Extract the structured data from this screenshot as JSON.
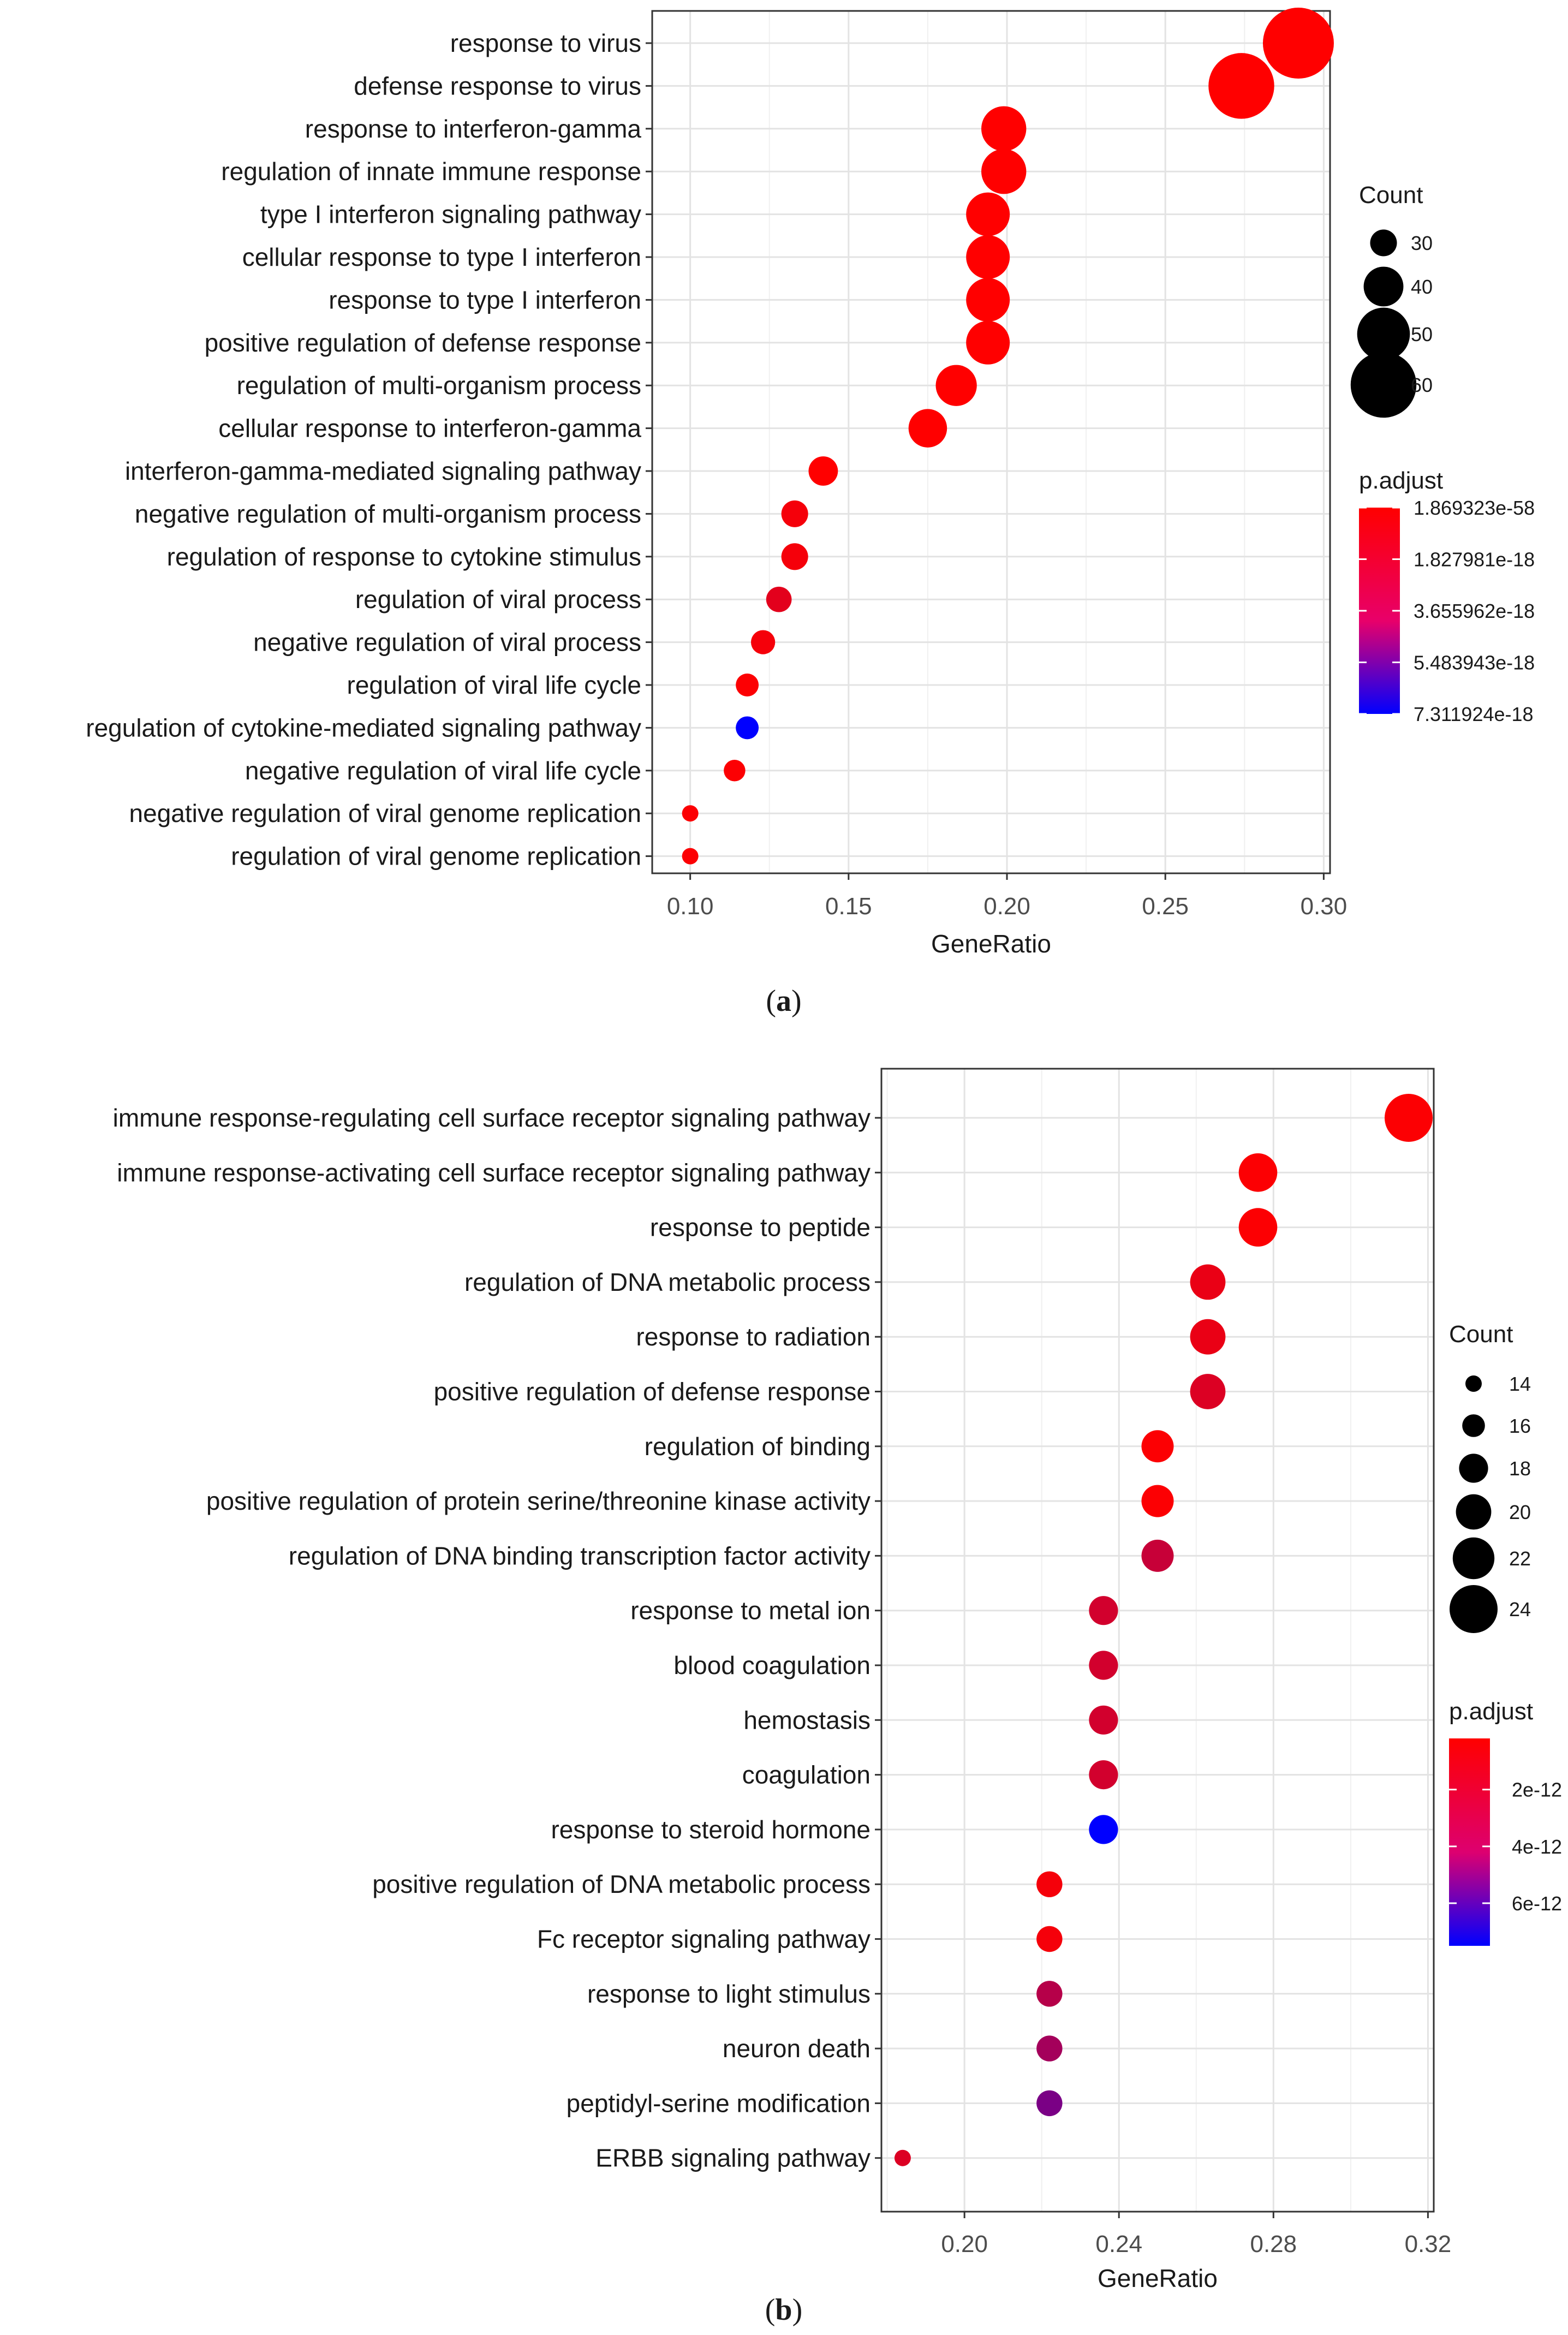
{
  "chart_data": [
    {
      "type": "scatter",
      "panel_label": "a",
      "xlabel": "GeneRatio",
      "xlim": [
        0.088,
        0.302
      ],
      "xticks": [
        "0.10",
        "0.15",
        "0.20",
        "0.25",
        "0.30"
      ],
      "xtick_values": [
        0.1,
        0.15,
        0.2,
        0.25,
        0.3
      ],
      "grid": true,
      "legend_placement": "right",
      "size_legend": {
        "title": "Count",
        "labels": [
          "30",
          "40",
          "50",
          "60"
        ],
        "values": [
          30,
          40,
          50,
          60
        ]
      },
      "color_legend": {
        "title": "p.adjust",
        "labels": [
          "1.869323e-58",
          "1.827981e-18",
          "3.655962e-18",
          "5.483943e-18",
          "7.311924e-18"
        ],
        "min": 0,
        "max": 7.311924e-18,
        "low_color": "#ff0000",
        "high_color": "#0000ff"
      },
      "size_range": [
        15,
        65
      ],
      "categories": [
        "response to virus",
        "defense response to virus",
        "response to interferon-gamma",
        "regulation of innate immune response",
        "type I interferon signaling pathway",
        "cellular response to type I interferon",
        "response to type I interferon",
        "positive regulation of defense response",
        "regulation of multi-organism process",
        "cellular response to interferon-gamma",
        "interferon-gamma-mediated signaling pathway",
        "negative regulation of multi-organism process",
        "regulation of response to cytokine stimulus",
        "regulation of viral process",
        "negative regulation of viral process",
        "regulation of viral life cycle",
        "regulation of cytokine-mediated signaling pathway",
        "negative regulation of viral life cycle",
        "negative regulation of viral genome replication",
        "regulation of viral genome replication"
      ],
      "points": [
        {
          "x": 0.292,
          "count": 64,
          "p_adjust": 2e-58
        },
        {
          "x": 0.274,
          "count": 60,
          "p_adjust": 2e-50
        },
        {
          "x": 0.199,
          "count": 44,
          "p_adjust": 1e-28
        },
        {
          "x": 0.199,
          "count": 44,
          "p_adjust": 1e-28
        },
        {
          "x": 0.194,
          "count": 43,
          "p_adjust": 1e-30
        },
        {
          "x": 0.194,
          "count": 43,
          "p_adjust": 1e-30
        },
        {
          "x": 0.194,
          "count": 43,
          "p_adjust": 1e-30
        },
        {
          "x": 0.194,
          "count": 43,
          "p_adjust": 1e-22
        },
        {
          "x": 0.184,
          "count": 41,
          "p_adjust": 1e-25
        },
        {
          "x": 0.175,
          "count": 39,
          "p_adjust": 1e-25
        },
        {
          "x": 0.142,
          "count": 32,
          "p_adjust": 1e-22
        },
        {
          "x": 0.133,
          "count": 30,
          "p_adjust": 3e-19
        },
        {
          "x": 0.133,
          "count": 30,
          "p_adjust": 3e-19
        },
        {
          "x": 0.128,
          "count": 29,
          "p_adjust": 8e-19
        },
        {
          "x": 0.123,
          "count": 28,
          "p_adjust": 3e-19
        },
        {
          "x": 0.118,
          "count": 27,
          "p_adjust": 1e-19
        },
        {
          "x": 0.118,
          "count": 27,
          "p_adjust": 7.3e-18
        },
        {
          "x": 0.114,
          "count": 26,
          "p_adjust": 1e-19
        },
        {
          "x": 0.1,
          "count": 22,
          "p_adjust": 1e-19
        },
        {
          "x": 0.1,
          "count": 22,
          "p_adjust": 1e-19
        }
      ]
    },
    {
      "type": "scatter",
      "panel_label": "b",
      "xlabel": "GeneRatio",
      "xlim": [
        0.1785,
        0.3215
      ],
      "xticks": [
        "0.20",
        "0.24",
        "0.28",
        "0.32"
      ],
      "xtick_values": [
        0.2,
        0.24,
        0.28,
        0.32
      ],
      "grid": true,
      "legend_placement": "right",
      "size_legend": {
        "title": "Count",
        "labels": [
          "14",
          "16",
          "18",
          "20",
          "22",
          "24"
        ],
        "values": [
          14,
          16,
          18,
          20,
          22,
          24
        ]
      },
      "color_legend": {
        "title": "p.adjust",
        "labels": [
          "2e-12",
          "4e-12",
          "6e-12"
        ],
        "label_values": [
          2e-12,
          4e-12,
          6e-12
        ],
        "min": 2e-13,
        "max": 7.5e-12,
        "low_color": "#ff0000",
        "high_color": "#0000ff"
      },
      "size_range": [
        15,
        44
      ],
      "categories": [
        "immune response-regulating cell surface receptor signaling pathway",
        "immune response-activating cell surface receptor signaling pathway",
        "response to peptide",
        "regulation of DNA metabolic process",
        "response to radiation",
        "positive regulation of defense response",
        "regulation of binding",
        "positive regulation of protein serine/threonine kinase activity",
        "regulation of DNA binding transcription factor activity",
        "response to metal ion",
        "blood coagulation",
        "hemostasis",
        "coagulation",
        "response to steroid hormone",
        "positive regulation of DNA metabolic process",
        "Fc receptor signaling pathway",
        "response to light stimulus",
        "neuron death",
        "peptidyl-serine modification",
        "ERBB signaling pathway"
      ],
      "points": [
        {
          "x": 0.315,
          "count": 24,
          "p_adjust": 3e-13
        },
        {
          "x": 0.276,
          "count": 21,
          "p_adjust": 3e-13
        },
        {
          "x": 0.276,
          "count": 21,
          "p_adjust": 3e-13
        },
        {
          "x": 0.263,
          "count": 20,
          "p_adjust": 8e-13
        },
        {
          "x": 0.263,
          "count": 20,
          "p_adjust": 8e-13
        },
        {
          "x": 0.263,
          "count": 20,
          "p_adjust": 1.2e-12
        },
        {
          "x": 0.25,
          "count": 19,
          "p_adjust": 3e-13
        },
        {
          "x": 0.25,
          "count": 19,
          "p_adjust": 3e-13
        },
        {
          "x": 0.25,
          "count": 19,
          "p_adjust": 1.8e-12
        },
        {
          "x": 0.236,
          "count": 18,
          "p_adjust": 1.5e-12
        },
        {
          "x": 0.236,
          "count": 18,
          "p_adjust": 1.5e-12
        },
        {
          "x": 0.236,
          "count": 18,
          "p_adjust": 1.5e-12
        },
        {
          "x": 0.236,
          "count": 18,
          "p_adjust": 1.5e-12
        },
        {
          "x": 0.236,
          "count": 18,
          "p_adjust": 7.5e-12
        },
        {
          "x": 0.222,
          "count": 17,
          "p_adjust": 5e-13
        },
        {
          "x": 0.222,
          "count": 17,
          "p_adjust": 5e-13
        },
        {
          "x": 0.222,
          "count": 17,
          "p_adjust": 2.3e-12
        },
        {
          "x": 0.222,
          "count": 17,
          "p_adjust": 2.8e-12
        },
        {
          "x": 0.222,
          "count": 17,
          "p_adjust": 4e-12
        },
        {
          "x": 0.184,
          "count": 14,
          "p_adjust": 1.2e-12
        }
      ]
    }
  ]
}
